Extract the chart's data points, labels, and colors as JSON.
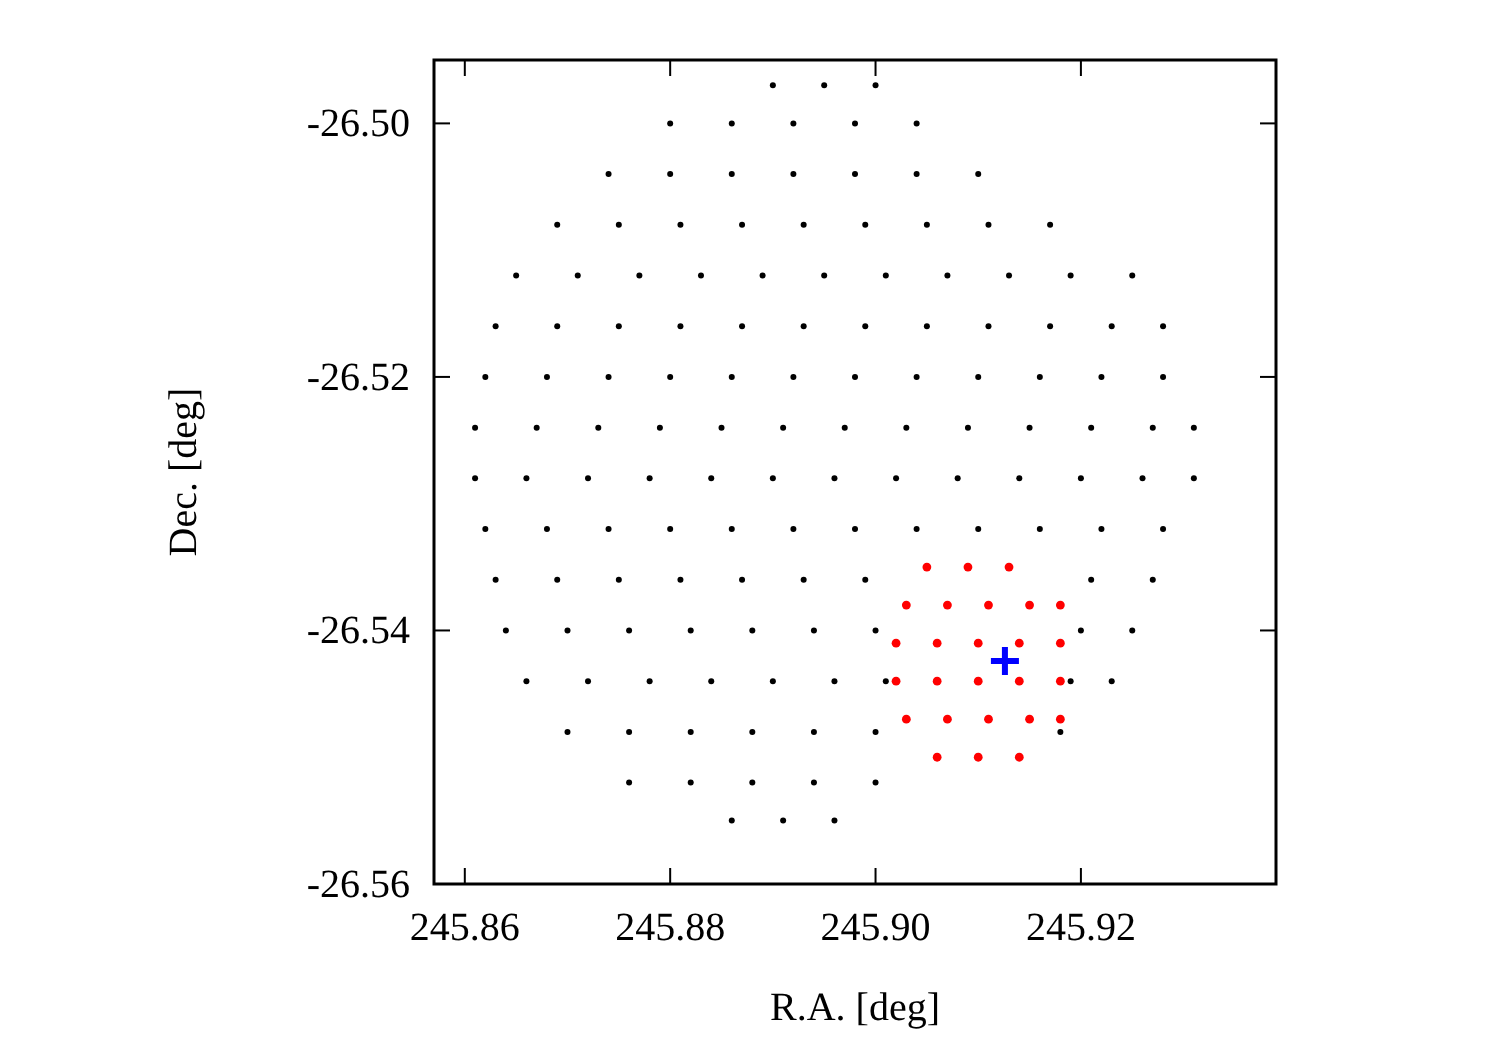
{
  "chart_data": {
    "type": "scatter",
    "xlabel": "R.A. [deg]",
    "ylabel": "Dec. [deg]",
    "xlim": [
      245.857,
      245.939
    ],
    "ylim": [
      -26.56,
      -26.495
    ],
    "xticks": [
      245.86,
      245.88,
      {
        "value": 245.9,
        "label": "245.90"
      },
      245.92
    ],
    "yticks": [
      {
        "value": -26.56,
        "label": "-26.56"
      },
      -26.54,
      -26.52,
      {
        "value": -26.5,
        "label": "-26.50"
      }
    ],
    "grid": false,
    "series": [
      {
        "color": "#000000",
        "marker": "circle",
        "x": [
          245.89,
          245.895,
          245.9,
          245.88,
          245.886,
          245.892,
          245.898,
          245.904,
          245.874,
          245.88,
          245.886,
          245.892,
          245.898,
          245.904,
          245.91,
          245.869,
          245.875,
          245.881,
          245.887,
          245.893,
          245.899,
          245.905,
          245.911,
          245.917,
          245.865,
          245.871,
          245.877,
          245.883,
          245.889,
          245.895,
          245.901,
          245.907,
          245.913,
          245.919,
          245.925,
          245.863,
          245.869,
          245.875,
          245.881,
          245.887,
          245.893,
          245.899,
          245.905,
          245.911,
          245.917,
          245.923,
          245.928,
          245.862,
          245.868,
          245.874,
          245.88,
          245.886,
          245.892,
          245.898,
          245.904,
          245.91,
          245.916,
          245.922,
          245.928,
          245.861,
          245.867,
          245.873,
          245.879,
          245.885,
          245.891,
          245.897,
          245.903,
          245.909,
          245.915,
          245.921,
          245.927,
          245.931,
          245.861,
          245.866,
          245.872,
          245.878,
          245.884,
          245.89,
          245.896,
          245.902,
          245.908,
          245.914,
          245.92,
          245.926,
          245.931,
          245.862,
          245.868,
          245.874,
          245.88,
          245.886,
          245.892,
          245.898,
          245.904,
          245.91,
          245.916,
          245.922,
          245.928,
          245.863,
          245.869,
          245.875,
          245.881,
          245.887,
          245.893,
          245.899,
          245.921,
          245.927,
          245.864,
          245.87,
          245.876,
          245.882,
          245.888,
          245.894,
          245.9,
          245.92,
          245.925,
          245.866,
          245.872,
          245.878,
          245.884,
          245.89,
          245.896,
          245.901,
          245.919,
          245.923,
          245.87,
          245.876,
          245.882,
          245.888,
          245.894,
          245.9,
          245.918,
          245.876,
          245.882,
          245.888,
          245.894,
          245.9,
          245.886,
          245.891,
          245.896
        ],
        "values": [
          -26.497,
          -26.497,
          -26.497,
          -26.5,
          -26.5,
          -26.5,
          -26.5,
          -26.5,
          -26.504,
          -26.504,
          -26.504,
          -26.504,
          -26.504,
          -26.504,
          -26.504,
          -26.508,
          -26.508,
          -26.508,
          -26.508,
          -26.508,
          -26.508,
          -26.508,
          -26.508,
          -26.508,
          -26.512,
          -26.512,
          -26.512,
          -26.512,
          -26.512,
          -26.512,
          -26.512,
          -26.512,
          -26.512,
          -26.512,
          -26.512,
          -26.516,
          -26.516,
          -26.516,
          -26.516,
          -26.516,
          -26.516,
          -26.516,
          -26.516,
          -26.516,
          -26.516,
          -26.516,
          -26.516,
          -26.52,
          -26.52,
          -26.52,
          -26.52,
          -26.52,
          -26.52,
          -26.52,
          -26.52,
          -26.52,
          -26.52,
          -26.52,
          -26.52,
          -26.524,
          -26.524,
          -26.524,
          -26.524,
          -26.524,
          -26.524,
          -26.524,
          -26.524,
          -26.524,
          -26.524,
          -26.524,
          -26.524,
          -26.524,
          -26.528,
          -26.528,
          -26.528,
          -26.528,
          -26.528,
          -26.528,
          -26.528,
          -26.528,
          -26.528,
          -26.528,
          -26.528,
          -26.528,
          -26.528,
          -26.532,
          -26.532,
          -26.532,
          -26.532,
          -26.532,
          -26.532,
          -26.532,
          -26.532,
          -26.532,
          -26.532,
          -26.532,
          -26.532,
          -26.536,
          -26.536,
          -26.536,
          -26.536,
          -26.536,
          -26.536,
          -26.536,
          -26.536,
          -26.536,
          -26.54,
          -26.54,
          -26.54,
          -26.54,
          -26.54,
          -26.54,
          -26.54,
          -26.54,
          -26.54,
          -26.544,
          -26.544,
          -26.544,
          -26.544,
          -26.544,
          -26.544,
          -26.544,
          -26.544,
          -26.544,
          -26.548,
          -26.548,
          -26.548,
          -26.548,
          -26.548,
          -26.548,
          -26.548,
          -26.552,
          -26.552,
          -26.552,
          -26.552,
          -26.552,
          -26.555,
          -26.555,
          -26.555
        ]
      },
      {
        "color": "#ff0000",
        "marker": "circle",
        "x": [
          245.905,
          245.909,
          245.913,
          245.903,
          245.907,
          245.911,
          245.915,
          245.918,
          245.902,
          245.906,
          245.91,
          245.914,
          245.918,
          245.902,
          245.906,
          245.91,
          245.914,
          245.918,
          245.903,
          245.907,
          245.911,
          245.915,
          245.918,
          245.906,
          245.91,
          245.914
        ],
        "values": [
          -26.535,
          -26.535,
          -26.535,
          -26.538,
          -26.538,
          -26.538,
          -26.538,
          -26.538,
          -26.541,
          -26.541,
          -26.541,
          -26.541,
          -26.541,
          -26.544,
          -26.544,
          -26.544,
          -26.544,
          -26.544,
          -26.547,
          -26.547,
          -26.547,
          -26.547,
          -26.547,
          -26.55,
          -26.55,
          -26.55
        ]
      },
      {
        "color": "#0000ff",
        "marker": "cross",
        "x": [
          245.9126
        ],
        "values": [
          -26.5424
        ]
      }
    ]
  }
}
